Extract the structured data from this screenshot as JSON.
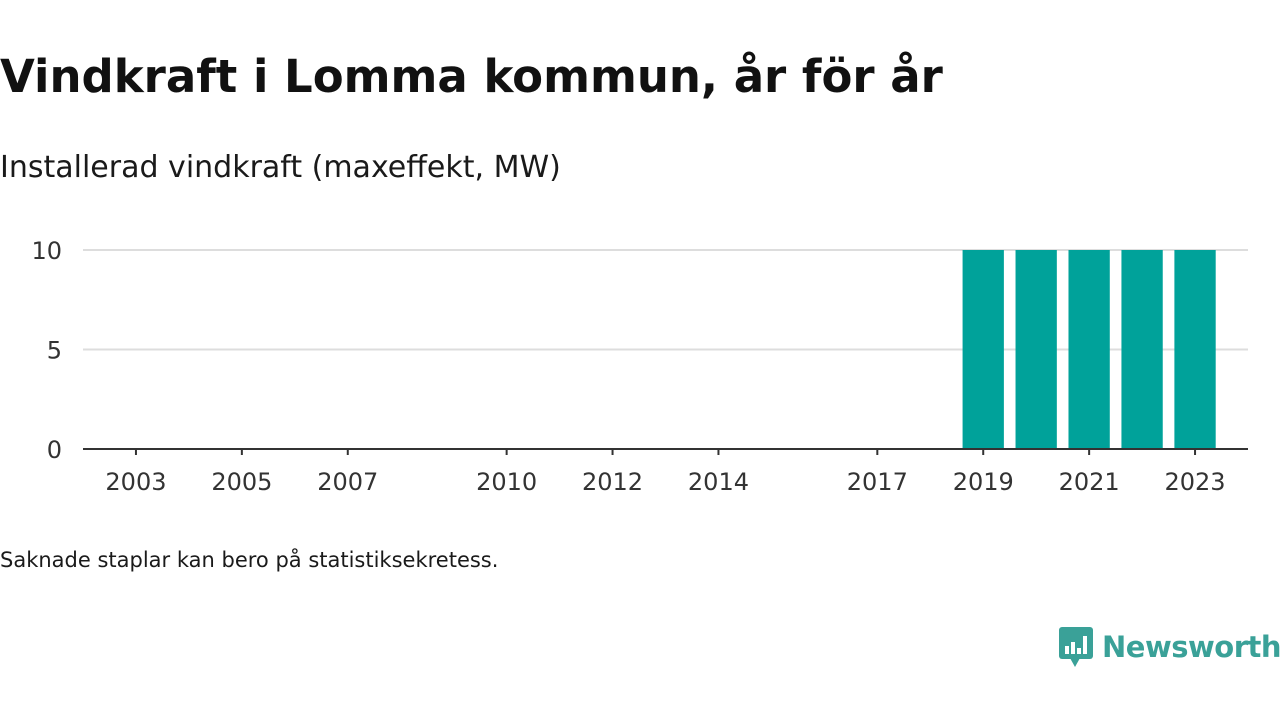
{
  "header": {
    "title": "Vindkraft i Lomma kommun, år för år",
    "subtitle": "Installerad vindkraft (maxeffekt, MW)"
  },
  "footer": {
    "note": "Saknade staplar kan bero på statistiksekretess.",
    "brand": "Newsworthy"
  },
  "colors": {
    "bar": "#00a29a",
    "grid": "#dddddd",
    "axis": "#333333",
    "brand": "#3aa198"
  },
  "chart_data": {
    "type": "bar",
    "title": "Vindkraft i Lomma kommun, år för år",
    "subtitle": "Installerad vindkraft (maxeffekt, MW)",
    "x": [
      2003,
      2004,
      2005,
      2006,
      2007,
      2008,
      2009,
      2010,
      2011,
      2012,
      2013,
      2014,
      2015,
      2016,
      2017,
      2018,
      2019,
      2020,
      2021,
      2022,
      2023
    ],
    "values": [
      0,
      0,
      0,
      0,
      0,
      0,
      0,
      0,
      0,
      0,
      0,
      0,
      0,
      0,
      0,
      0,
      10,
      10,
      10,
      10,
      10
    ],
    "x_ticks": [
      2003,
      2005,
      2007,
      2010,
      2012,
      2014,
      2017,
      2019,
      2021,
      2023
    ],
    "y_ticks": [
      0,
      5,
      10
    ],
    "ylim": [
      0,
      10
    ],
    "xlim": [
      2002,
      2024
    ],
    "grid": true
  }
}
